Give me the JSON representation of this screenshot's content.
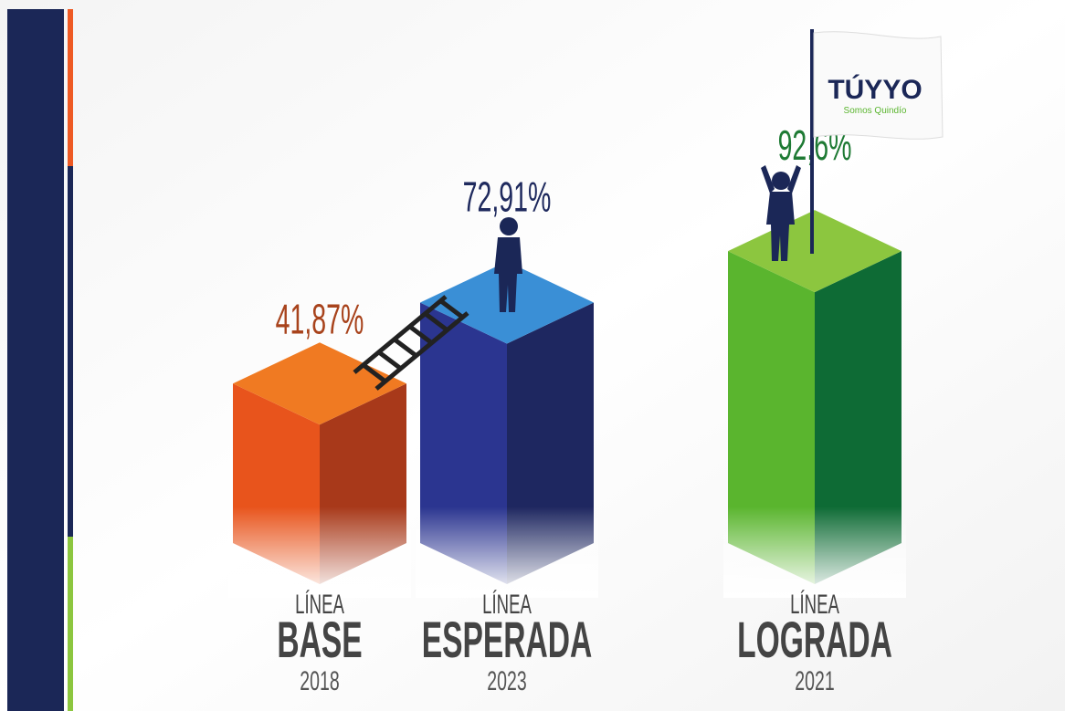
{
  "chart_data": {
    "type": "bar3d",
    "categories": [
      "BASE",
      "ESPERADA",
      "LOGRADA"
    ],
    "category_prefixes": [
      "LÍNEA",
      "LÍNEA",
      "LÍNEA"
    ],
    "years": [
      "2018",
      "2023",
      "2021"
    ],
    "values": [
      41.87,
      72.91,
      92.6
    ],
    "value_labels": [
      "41,87%",
      "72,91%",
      "92,6%"
    ],
    "colors": [
      "#e8541c",
      "#2b3590",
      "#5ab52e"
    ],
    "side_colors": [
      "#a8391a",
      "#1e2760",
      "#0e6b35"
    ],
    "top_colors": [
      "#f07a22",
      "#3a8fd6",
      "#8cc63f"
    ],
    "label_colors": [
      "#a8431c",
      "#1f2a5e",
      "#1e7a34"
    ],
    "logo": {
      "text": "TÚYYO",
      "subtitle": "Somos Quindío"
    }
  }
}
